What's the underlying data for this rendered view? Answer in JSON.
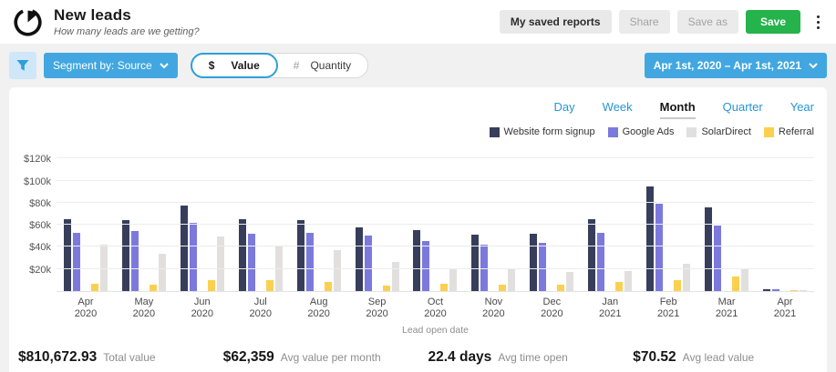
{
  "header": {
    "title": "New leads",
    "subtitle": "How many leads are we getting?",
    "buttons": {
      "my_saved_reports": "My saved reports",
      "share": "Share",
      "save_as": "Save as",
      "save": "Save"
    }
  },
  "filter_bar": {
    "segment_by_label": "Segment by: Source",
    "value_toggle": {
      "dollar_symbol": "$",
      "value_label": "Value",
      "hash_symbol": "#",
      "quantity_label": "Quantity"
    },
    "date_range": "Apr 1st, 2020 – Apr 1st, 2021"
  },
  "chart_controls": {
    "tabs": [
      {
        "label": "Day",
        "active": false
      },
      {
        "label": "Week",
        "active": false
      },
      {
        "label": "Month",
        "active": true
      },
      {
        "label": "Quarter",
        "active": false
      },
      {
        "label": "Year",
        "active": false
      }
    ]
  },
  "chart_data": {
    "type": "bar",
    "title": "New leads by month, segmented by source",
    "xlabel": "Lead open date",
    "ylabel": "",
    "unit": "$ thousands",
    "ylim": [
      0,
      130
    ],
    "grid": true,
    "legend_position": "top-right",
    "y_ticks": [
      "$20k",
      "$40k",
      "$60k",
      "$80k",
      "$100k",
      "$120k"
    ],
    "y_tick_values": [
      20,
      40,
      60,
      80,
      100,
      120
    ],
    "categories": [
      "Apr 2020",
      "May 2020",
      "Jun 2020",
      "Jul 2020",
      "Aug 2020",
      "Sep 2020",
      "Oct 2020",
      "Nov 2020",
      "Dec 2020",
      "Jan 2021",
      "Feb 2021",
      "Mar 2021",
      "Apr 2021"
    ],
    "series": [
      {
        "name": "Website form signup",
        "color": "#373e5c",
        "values": [
          65,
          64,
          77,
          65,
          64,
          58,
          55,
          51,
          52,
          65,
          95,
          76,
          2
        ]
      },
      {
        "name": "Google Ads",
        "color": "#7c79dd",
        "values": [
          53,
          54,
          62,
          52,
          53,
          50,
          45,
          42,
          44,
          53,
          79,
          59,
          2
        ]
      },
      {
        "name": "SolarDirect",
        "color": "#e2e0de",
        "values": [
          42,
          34,
          49,
          41,
          37,
          26,
          20,
          21,
          17,
          18,
          25,
          20,
          0.5
        ]
      },
      {
        "name": "Referral",
        "color": "#fcd04f",
        "values": [
          7,
          6,
          10,
          10,
          8,
          5,
          7,
          6,
          6,
          8,
          10,
          13,
          1
        ]
      }
    ],
    "bar_display_order": [
      "Website form signup",
      "Google Ads",
      "Referral",
      "SolarDirect"
    ]
  },
  "stats": [
    {
      "value": "$810,672.93",
      "label": "Total value"
    },
    {
      "value": "$62,359",
      "label": "Avg value per month"
    },
    {
      "value": "22.4 days",
      "label": "Avg time open"
    },
    {
      "value": "$70.52",
      "label": "Avg lead value"
    }
  ],
  "colors": {
    "accent_blue": "#42a7e0",
    "tab_blue": "#2795d3",
    "save_green": "#25b34c",
    "filter_bar_bg": "#f1f1f1",
    "bar_navy": "#373e5c",
    "bar_purple": "#7c79dd",
    "bar_gray": "#e2e0de",
    "bar_yellow": "#fcd04f"
  }
}
